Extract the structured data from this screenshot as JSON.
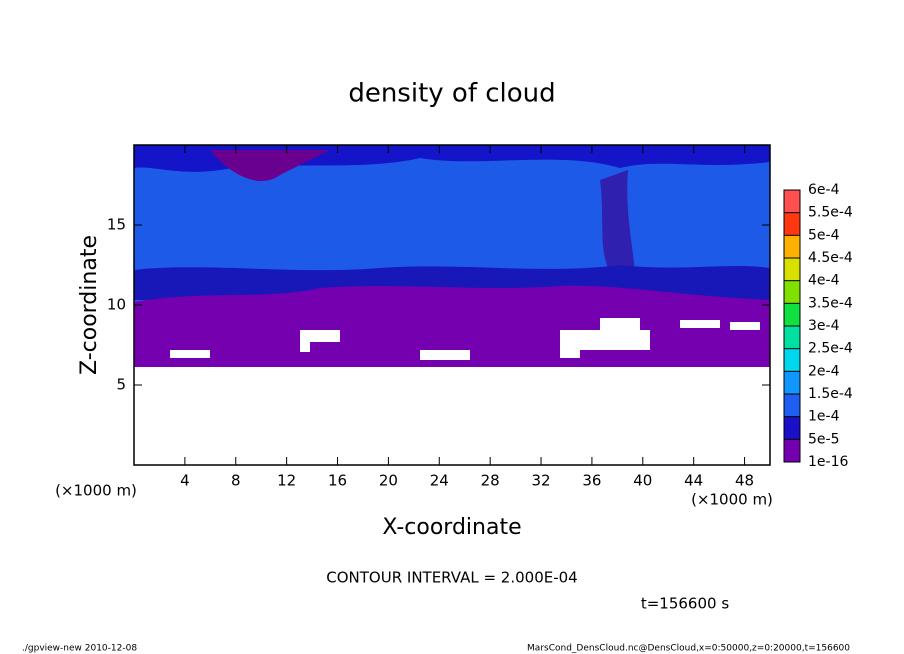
{
  "chart_data": {
    "type": "contour",
    "title": "density of cloud",
    "xlabel": "X-coordinate",
    "ylabel": "Z-coordinate",
    "xunit": "(×1000 m)",
    "yunit": "(×1000 m)",
    "xlim": [
      0,
      50
    ],
    "xticks": [
      4,
      8,
      12,
      16,
      20,
      24,
      28,
      32,
      36,
      40,
      44,
      48
    ],
    "ylim": [
      0,
      20
    ],
    "yticks": [
      5,
      10,
      15
    ],
    "levels": [
      {
        "value": 1e-16,
        "label": "1e-16"
      },
      {
        "value": 5e-05,
        "label": "5e-5"
      },
      {
        "value": 0.0001,
        "label": "1e-4"
      },
      {
        "value": 0.00015,
        "label": "1.5e-4"
      },
      {
        "value": 0.0002,
        "label": "2e-4"
      },
      {
        "value": 0.00025,
        "label": "2.5e-4"
      },
      {
        "value": 0.0003,
        "label": "3e-4"
      },
      {
        "value": 0.00035,
        "label": "3.5e-4"
      },
      {
        "value": 0.0004,
        "label": "4e-4"
      },
      {
        "value": 0.00045,
        "label": "4.5e-4"
      },
      {
        "value": 0.0005,
        "label": "5e-4"
      },
      {
        "value": 0.00055,
        "label": "5.5e-4"
      },
      {
        "value": 0.0006,
        "label": "6e-4"
      }
    ],
    "colors": [
      "#7400b0",
      "#1a10c8",
      "#1e5ef0",
      "#1098ff",
      "#00d8f0",
      "#00e0a0",
      "#10e040",
      "#80e000",
      "#d8e000",
      "#ffb000",
      "#ff3810",
      "#ff5050"
    ],
    "contour_interval": "CONTOUR INTERVAL = 2.000E-04",
    "time": "t=156600 s",
    "footer_left": "./gpview-new  2010-12-08",
    "footer_right": "MarsCond_DensCloud.nc@DensCloud,x=0:50000,z=0:20000,t=156600"
  }
}
